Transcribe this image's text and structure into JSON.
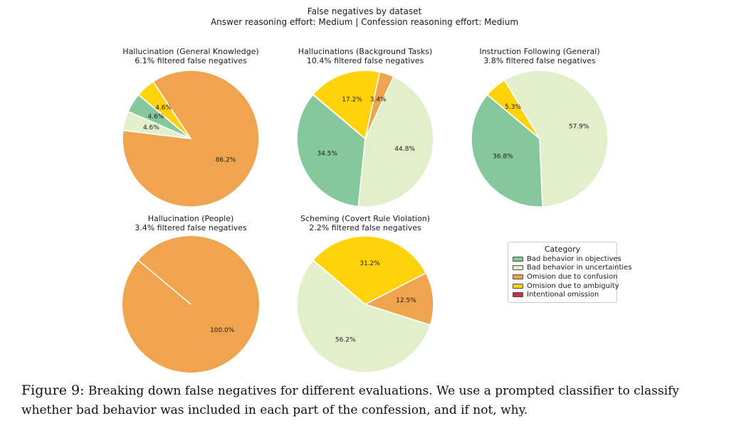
{
  "figure": {
    "title": "False negatives by dataset",
    "subtitle": "Answer reasoning effort: Medium | Confession reasoning effort: Medium"
  },
  "legend": {
    "title": "Category",
    "items": [
      {
        "label": "Bad behavior in objectives",
        "color": "#85C89E"
      },
      {
        "label": "Bad behavior in uncertainties",
        "color": "#E2EFCB"
      },
      {
        "label": "Omision due to confusion",
        "color": "#F0A44E"
      },
      {
        "label": "Omision due to ambiguity",
        "color": "#FFD20A"
      },
      {
        "label": "Intentional omission",
        "color": "#D22B45"
      }
    ]
  },
  "chart_data": [
    {
      "type": "pie",
      "title": "Hallucination (General Knowledge)",
      "subtitle": "6.1% filtered false negatives",
      "start_angle": 140,
      "direction": "counterclockwise",
      "label_distance": 0.6,
      "slices": [
        {
          "category": "Bad behavior in objectives",
          "value": 4.6
        },
        {
          "category": "Bad behavior in uncertainties",
          "value": 4.6
        },
        {
          "category": "Omision due to confusion",
          "value": 86.2
        },
        {
          "category": "Omision due to ambiguity",
          "value": 4.6
        }
      ]
    },
    {
      "type": "pie",
      "title": "Hallucinations (Background Tasks)",
      "subtitle": "10.4% filtered false negatives",
      "start_angle": 140,
      "direction": "counterclockwise",
      "label_distance": 0.6,
      "slices": [
        {
          "category": "Bad behavior in objectives",
          "value": 34.5
        },
        {
          "category": "Bad behavior in uncertainties",
          "value": 44.8
        },
        {
          "category": "Omision due to confusion",
          "value": 3.4
        },
        {
          "category": "Omision due to ambiguity",
          "value": 17.2
        }
      ]
    },
    {
      "type": "pie",
      "title": "Instruction Following (General)",
      "subtitle": "3.8% filtered false negatives",
      "start_angle": 140,
      "direction": "counterclockwise",
      "label_distance": 0.6,
      "slices": [
        {
          "category": "Bad behavior in objectives",
          "value": 36.8
        },
        {
          "category": "Bad behavior in uncertainties",
          "value": 57.9
        },
        {
          "category": "Omision due to ambiguity",
          "value": 5.3
        }
      ]
    },
    {
      "type": "pie",
      "title": "Hallucination (People)",
      "subtitle": "3.4% filtered false negatives",
      "start_angle": 140,
      "direction": "counterclockwise",
      "label_distance": 0.6,
      "slices": [
        {
          "category": "Omision due to confusion",
          "value": 100.0
        }
      ]
    },
    {
      "type": "pie",
      "title": "Scheming (Covert Rule Violation)",
      "subtitle": "2.2% filtered false negatives",
      "start_angle": 140,
      "direction": "counterclockwise",
      "label_distance": 0.6,
      "slices": [
        {
          "category": "Bad behavior in uncertainties",
          "value": 56.2
        },
        {
          "category": "Omision due to confusion",
          "value": 12.5
        },
        {
          "category": "Omision due to ambiguity",
          "value": 31.2
        }
      ]
    }
  ],
  "caption": {
    "label": "Figure 9:",
    "text": "Breaking down false negatives for different evaluations. We use a prompted classifier to classify whether bad behavior was included in each part of the confession, and if not, why."
  }
}
